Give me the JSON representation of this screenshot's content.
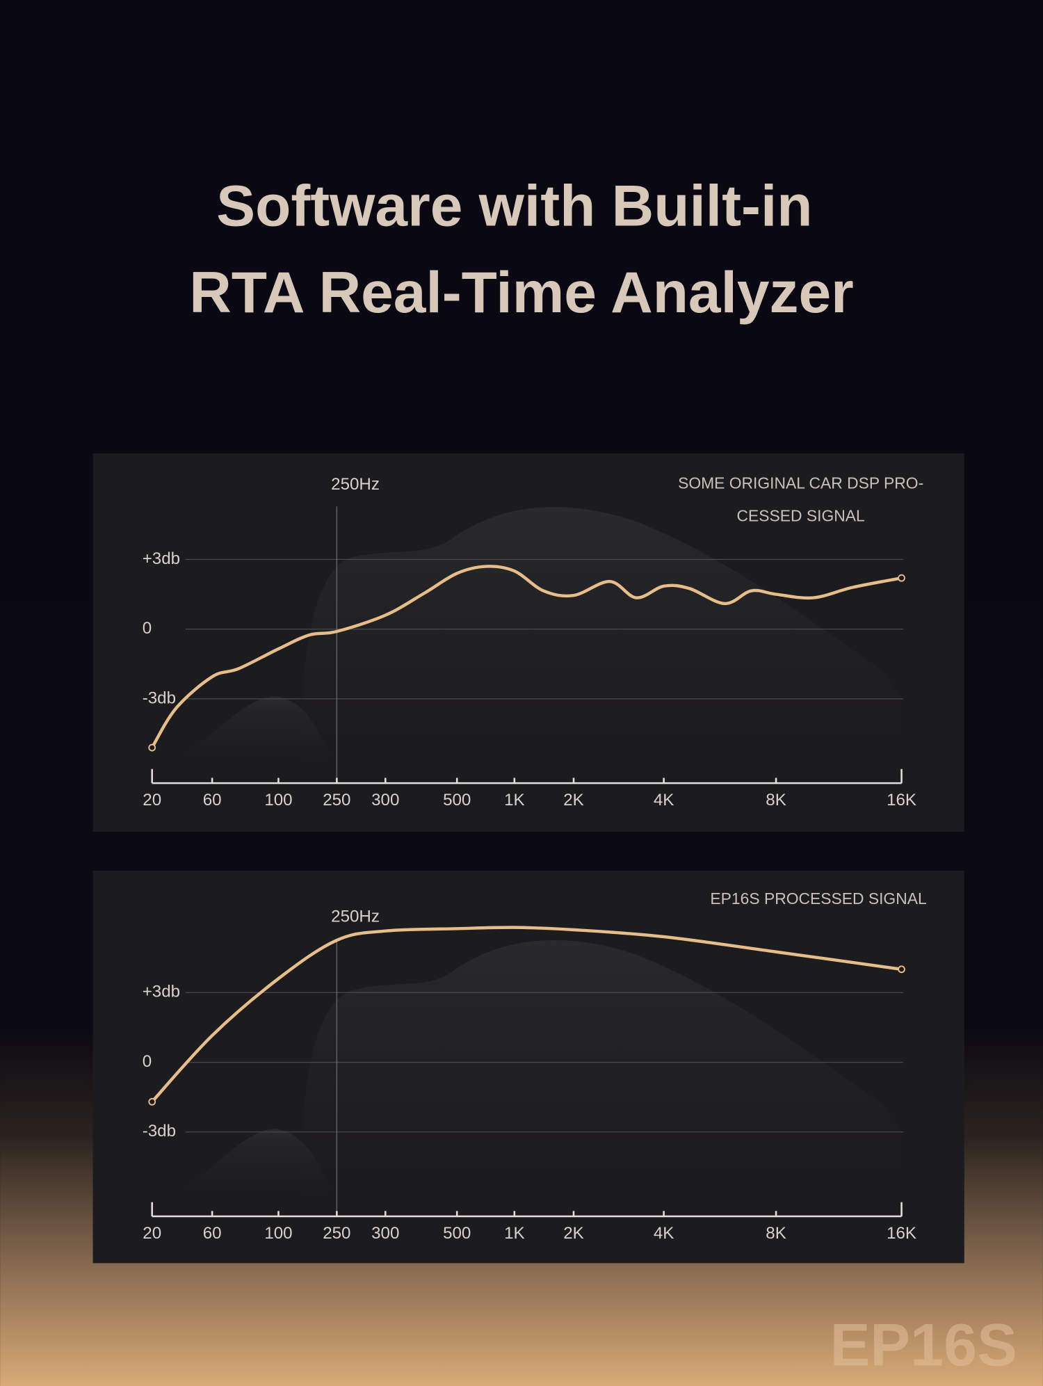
{
  "header": {
    "title": [
      "Software with Built-in",
      "RTA Real-Time Analyzer"
    ]
  },
  "brand": "EP16S",
  "chart_data": [
    {
      "type": "line",
      "title": [
        "SOME ORIGINAL CAR DSP PRO-",
        "CESSED SIGNAL"
      ],
      "annotations": [
        {
          "x": 250,
          "text": "250Hz"
        }
      ],
      "x": [
        20,
        36,
        60,
        76,
        100,
        180,
        250,
        300,
        409,
        500,
        754,
        1000,
        1490,
        2000,
        2800,
        3390,
        4000,
        4910,
        6170,
        7120,
        8000,
        10370,
        12900,
        16000
      ],
      "values": [
        -5.1,
        -3.4,
        -2.05,
        -1.7,
        -0.85,
        -0.25,
        -0.1,
        0.6,
        1.55,
        2.4,
        2.7,
        2.5,
        1.65,
        1.45,
        2.05,
        1.35,
        1.85,
        1.75,
        1.1,
        1.65,
        1.5,
        1.35,
        1.8,
        2.2
      ],
      "color": "#e8bd8c",
      "ylim": [
        -6.4,
        6
      ],
      "yticks": [
        {
          "value": 3,
          "label": "+3db"
        },
        0,
        {
          "value": -3,
          "label": "-3db"
        }
      ],
      "xticks": [
        20,
        60,
        100,
        250,
        300,
        500,
        {
          "value": 1000,
          "label": "1K"
        },
        {
          "value": 2000,
          "label": "2K"
        },
        {
          "value": 4000,
          "label": "4K"
        },
        {
          "value": 8000,
          "label": "8K"
        },
        {
          "value": 16000,
          "label": "16K"
        }
      ],
      "xlim": [
        20,
        16000
      ],
      "grid": true
    },
    {
      "type": "line",
      "title": [
        "EP16S PROCESSED SIGNAL"
      ],
      "annotations": [
        {
          "x": 250,
          "text": "250Hz"
        }
      ],
      "x": [
        20,
        60,
        100,
        250,
        300,
        500,
        1000,
        2000,
        4000,
        8000,
        16000
      ],
      "values": [
        -1.7,
        1.15,
        3.6,
        5.25,
        5.65,
        5.75,
        5.8,
        5.7,
        5.4,
        4.75,
        4.0
      ],
      "color": "#e8bd8c",
      "ylim": [
        -6.4,
        6
      ],
      "yticks": [
        {
          "value": 3,
          "label": "+3db"
        },
        0,
        {
          "value": -3,
          "label": "-3db"
        }
      ],
      "xticks": [
        20,
        60,
        100,
        250,
        300,
        500,
        {
          "value": 1000,
          "label": "1K"
        },
        {
          "value": 2000,
          "label": "2K"
        },
        {
          "value": 4000,
          "label": "4K"
        },
        {
          "value": 8000,
          "label": "8K"
        },
        {
          "value": 16000,
          "label": "16K"
        }
      ],
      "xlim": [
        20,
        16000
      ],
      "grid": true
    }
  ]
}
